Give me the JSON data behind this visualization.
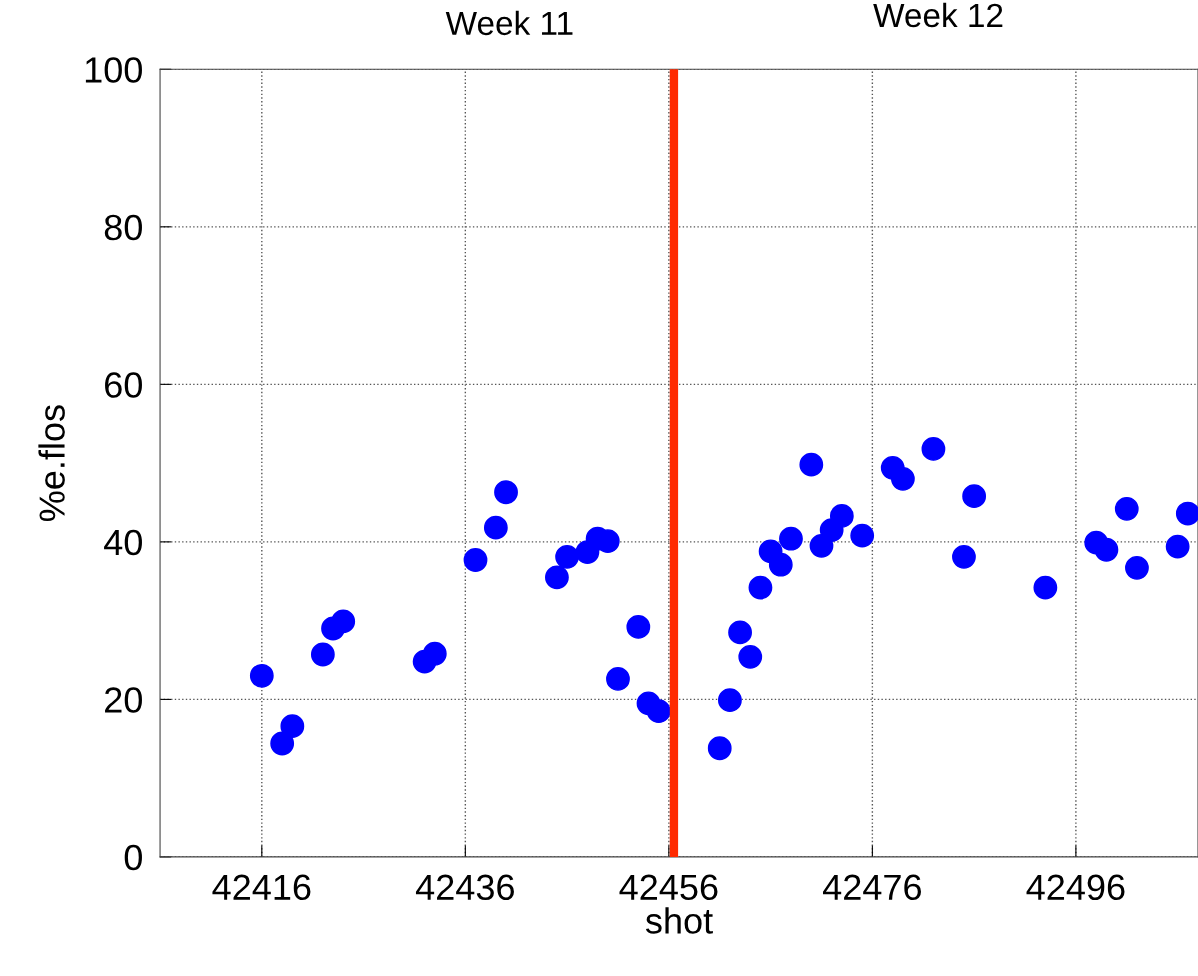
{
  "chart_data": {
    "type": "scatter",
    "xlabel": "shot",
    "ylabel": "%e.flos",
    "x": [
      42416,
      42418,
      42419,
      42422,
      42423,
      42424,
      42432,
      42433,
      42437,
      42439,
      42440,
      42445,
      42446,
      42448,
      42449,
      42450,
      42451,
      42453,
      42454,
      42455,
      42461,
      42462,
      42463,
      42464,
      42465,
      42466,
      42467,
      42468,
      42470,
      42471,
      42472,
      42473,
      42475,
      42478,
      42479,
      42482,
      42485,
      42486,
      42493,
      42498,
      42499,
      42501,
      42502,
      42506,
      42507
    ],
    "series": [
      {
        "color": "#0000ff",
        "values": [
          23.0,
          14.4,
          16.6,
          25.7,
          29.0,
          29.9,
          24.8,
          25.8,
          37.7,
          41.8,
          46.3,
          35.5,
          38.1,
          38.7,
          40.4,
          40.1,
          22.6,
          29.2,
          19.5,
          18.5,
          13.8,
          19.9,
          28.5,
          25.4,
          34.2,
          38.8,
          37.1,
          40.4,
          49.8,
          39.5,
          41.5,
          43.3,
          40.8,
          49.4,
          48.0,
          51.8,
          38.1,
          45.8,
          34.2,
          39.9,
          39.0,
          44.2,
          36.7,
          39.4,
          43.6
        ]
      }
    ],
    "marker": "circle",
    "xlim": [
      42406,
      42508
    ],
    "xticks": [
      42416,
      42436,
      42456,
      42476,
      42496
    ],
    "ylim": [
      0,
      100
    ],
    "yticks": [
      0,
      20,
      40,
      60,
      80,
      100
    ],
    "grid": true,
    "legend": false,
    "ref_lines": [
      {
        "axis": "x",
        "value": 42456.5,
        "color": "#ff2a00",
        "line_style": "solid"
      }
    ],
    "annotations": [
      "Week 11",
      "Week 12"
    ]
  }
}
